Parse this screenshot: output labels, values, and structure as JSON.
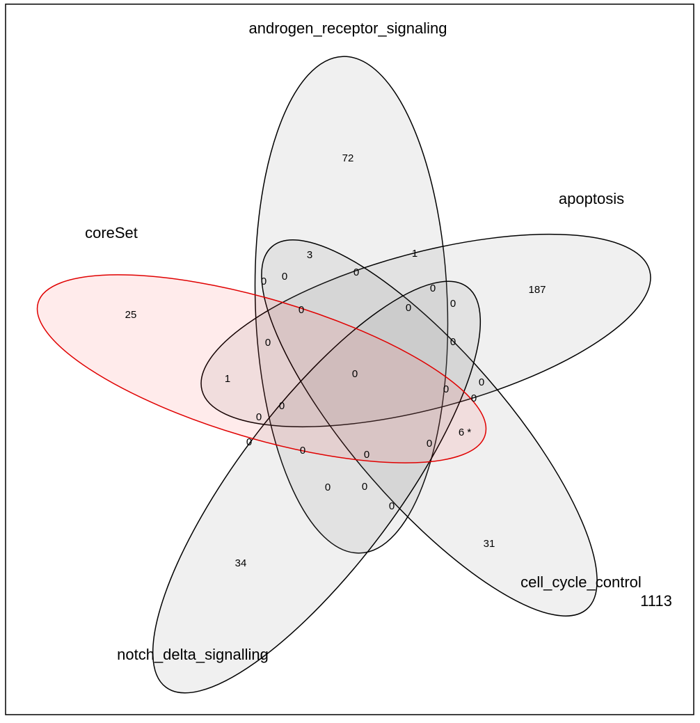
{
  "sets": [
    {
      "label": "androgen_receptor_signaling"
    },
    {
      "label": "apoptosis"
    },
    {
      "label": "coreSet"
    },
    {
      "label": "cell_cycle_control"
    },
    {
      "label": "notch_delta_signalling"
    }
  ],
  "regions": [
    72,
    187,
    25,
    34,
    31,
    1,
    3,
    0,
    0,
    0,
    0,
    0,
    0,
    0,
    0,
    0,
    1,
    0,
    0,
    0,
    0,
    0,
    0,
    {
      "value": 6,
      "label": "6 *"
    },
    0,
    0,
    0,
    0,
    0,
    0,
    0
  ],
  "outside": 1113
}
